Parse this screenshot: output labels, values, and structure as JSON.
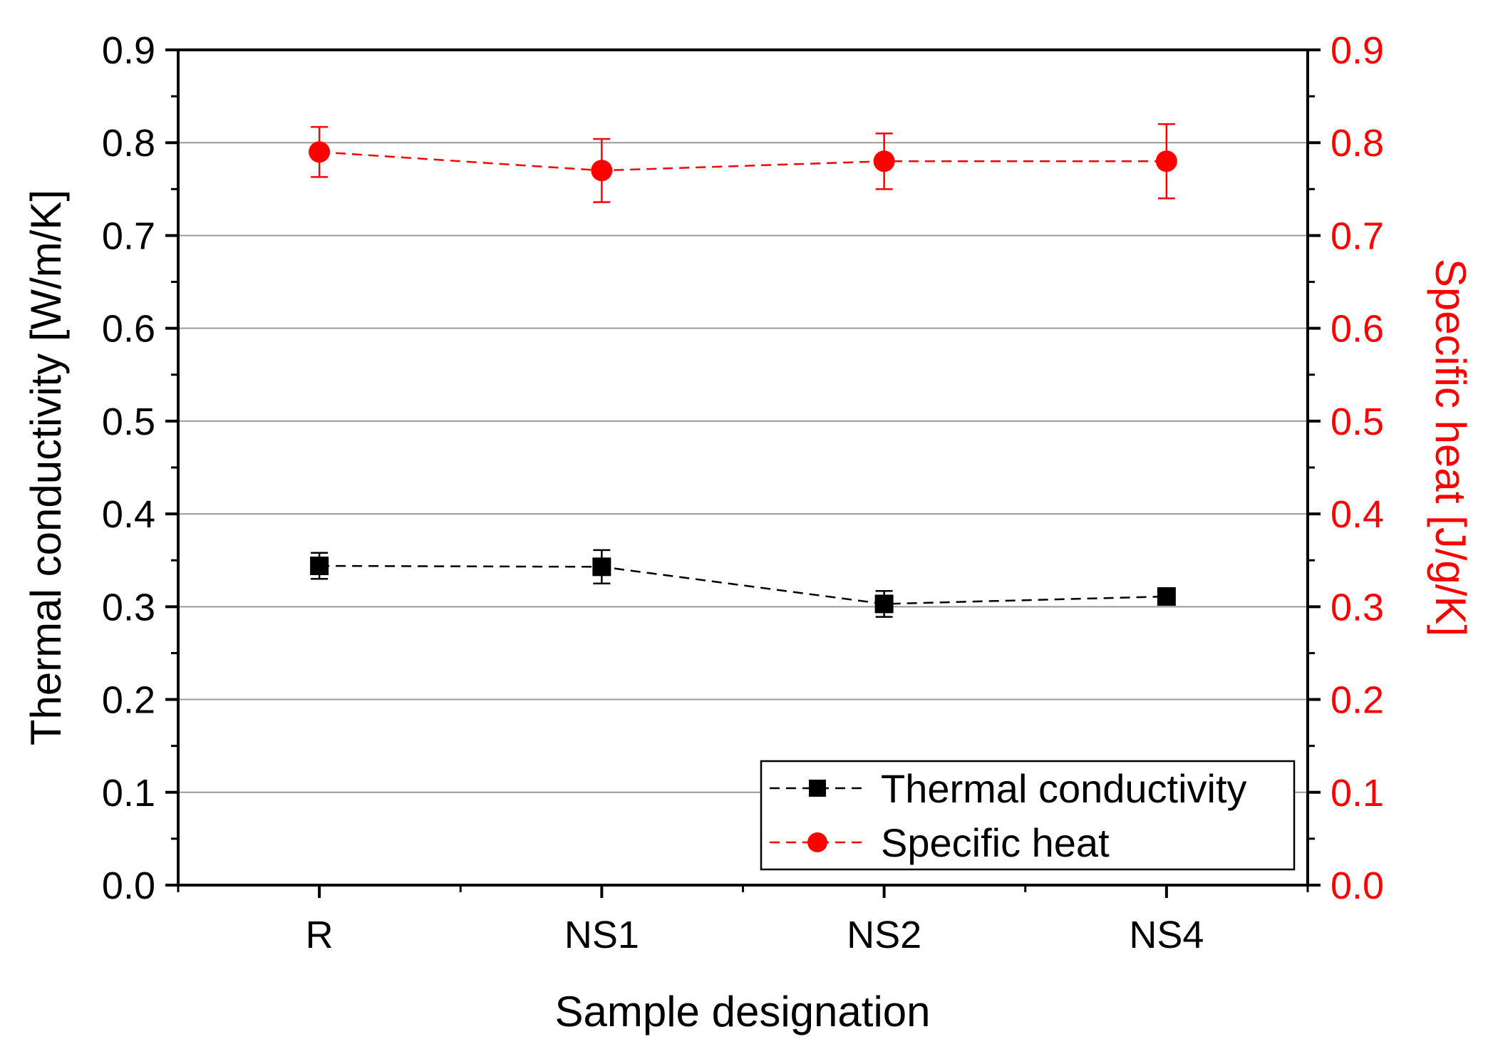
{
  "chart_data": {
    "type": "line",
    "categories": [
      "R",
      "NS1",
      "NS2",
      "NS4"
    ],
    "xlabel": "Sample designation",
    "ylabel_left": "Thermal conductivity [W/m/K]",
    "ylabel_right": "Specific heat [J/g/K]",
    "ylim": [
      0,
      0.9
    ],
    "y_ticks": [
      "0.0",
      "0.1",
      "0.2",
      "0.3",
      "0.4",
      "0.5",
      "0.6",
      "0.7",
      "0.8",
      "0.9"
    ],
    "y_ticks_right": [
      "0.0",
      "0.1",
      "0.2",
      "0.3",
      "0.4",
      "0.5",
      "0.6",
      "0.7",
      "0.8",
      "0.9"
    ],
    "grid": true,
    "legend_position": "bottom-right",
    "series": [
      {
        "name": "Thermal conductivity",
        "axis": "left",
        "marker": "square",
        "color": "#000000",
        "values": [
          0.344,
          0.343,
          0.303,
          0.311
        ],
        "errors": [
          0.014,
          0.018,
          0.014,
          0.008
        ]
      },
      {
        "name": "Specific heat",
        "axis": "right",
        "marker": "circle",
        "color": "#ff0000",
        "values": [
          0.79,
          0.77,
          0.78,
          0.78
        ],
        "errors": [
          0.027,
          0.034,
          0.03,
          0.04
        ]
      }
    ]
  }
}
